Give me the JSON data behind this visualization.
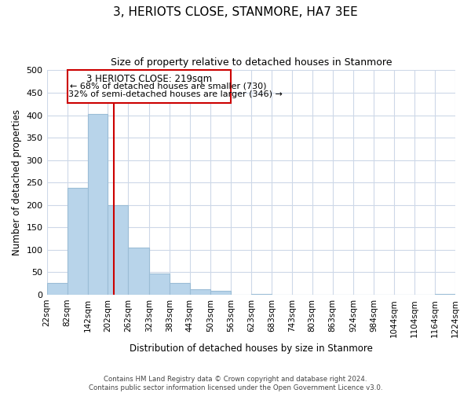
{
  "title": "3, HERIOTS CLOSE, STANMORE, HA7 3EE",
  "subtitle": "Size of property relative to detached houses in Stanmore",
  "xlabel": "Distribution of detached houses by size in Stanmore",
  "ylabel": "Number of detached properties",
  "bin_edges": [
    22,
    82,
    142,
    202,
    262,
    323,
    383,
    443,
    503,
    563,
    623,
    683,
    743,
    803,
    863,
    924,
    984,
    1044,
    1104,
    1164,
    1224
  ],
  "bin_labels": [
    "22sqm",
    "82sqm",
    "142sqm",
    "202sqm",
    "262sqm",
    "323sqm",
    "383sqm",
    "443sqm",
    "503sqm",
    "563sqm",
    "623sqm",
    "683sqm",
    "743sqm",
    "803sqm",
    "863sqm",
    "924sqm",
    "984sqm",
    "1044sqm",
    "1104sqm",
    "1164sqm",
    "1224sqm"
  ],
  "counts": [
    26,
    238,
    403,
    199,
    105,
    48,
    26,
    12,
    8,
    0,
    2,
    0,
    0,
    0,
    0,
    0,
    0,
    0,
    0,
    2
  ],
  "bar_color": "#b8d4ea",
  "bar_edge_color": "#9bbdd6",
  "property_line_x": 219,
  "property_line_color": "#cc0000",
  "annotation_title": "3 HERIOTS CLOSE: 219sqm",
  "annotation_line1": "← 68% of detached houses are smaller (730)",
  "annotation_line2": "32% of semi-detached houses are larger (346) →",
  "annotation_box_color": "#ffffff",
  "annotation_box_edge": "#cc0000",
  "ylim": [
    0,
    500
  ],
  "yticks": [
    0,
    50,
    100,
    150,
    200,
    250,
    300,
    350,
    400,
    450,
    500
  ],
  "footer_line1": "Contains HM Land Registry data © Crown copyright and database right 2024.",
  "footer_line2": "Contains public sector information licensed under the Open Government Licence v3.0.",
  "background_color": "#ffffff",
  "grid_color": "#cdd8e8"
}
